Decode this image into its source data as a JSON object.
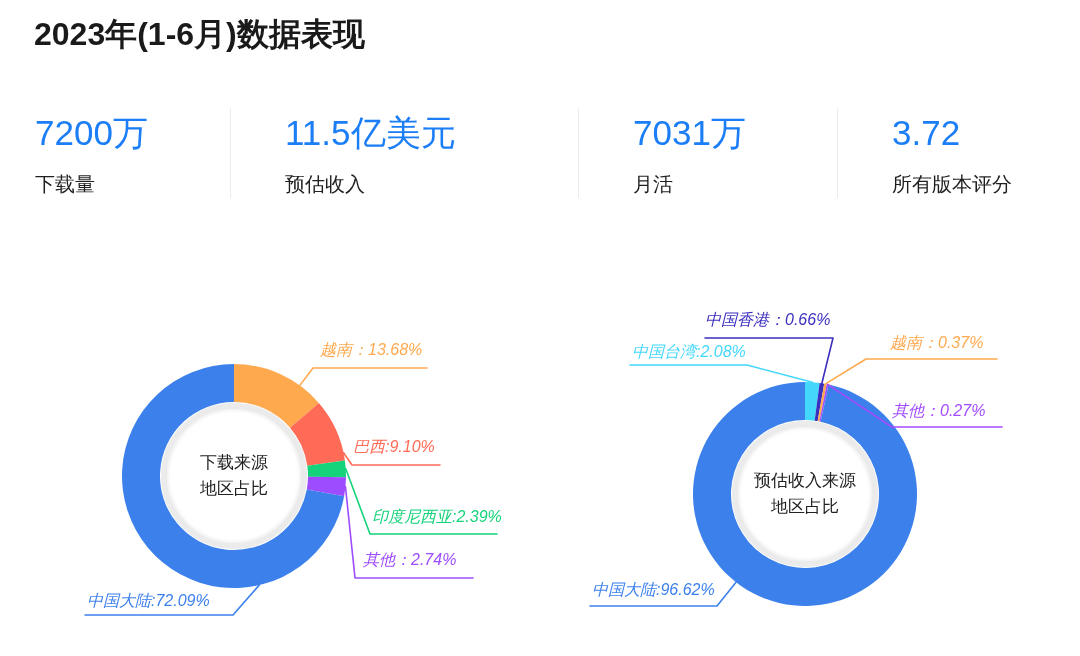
{
  "chart_data": [
    {
      "type": "other",
      "title": "2023年(1-6月)数据表现",
      "annotations": [
        "7200万",
        "下载量",
        "11.5亿美元",
        "预估收入",
        "7031万",
        "月活",
        "3.72",
        "所有版本评分"
      ]
    },
    {
      "type": "donut",
      "title": "下载来源地区占比",
      "categories": [
        "越南",
        "巴西",
        "印度尼西亚",
        "其他",
        "中国大陆"
      ],
      "values": [
        13.68,
        9.1,
        2.39,
        2.74,
        72.09
      ],
      "colors": [
        "#ffa94f",
        "#ff6b57",
        "#14d37a",
        "#9d4cff",
        "#3c80ec"
      ],
      "value_labels": [
        "：13.68%",
        ":9.10%",
        ":2.39%",
        "：2.74%",
        ":72.09%"
      ]
    },
    {
      "type": "donut",
      "title": "预估收入来源地区占比",
      "categories": [
        "中国台湾",
        "中国香港",
        "越南",
        "其他",
        "中国大陆"
      ],
      "values": [
        2.08,
        0.66,
        0.37,
        0.27,
        96.62
      ],
      "colors": [
        "#44d7fc",
        "#3b2fbe",
        "#ffa94f",
        "#a24cff",
        "#3c80ec"
      ],
      "value_labels": [
        ":2.08%",
        "：0.66%",
        "：0.37%",
        "：0.27%",
        ":96.62%"
      ]
    }
  ]
}
